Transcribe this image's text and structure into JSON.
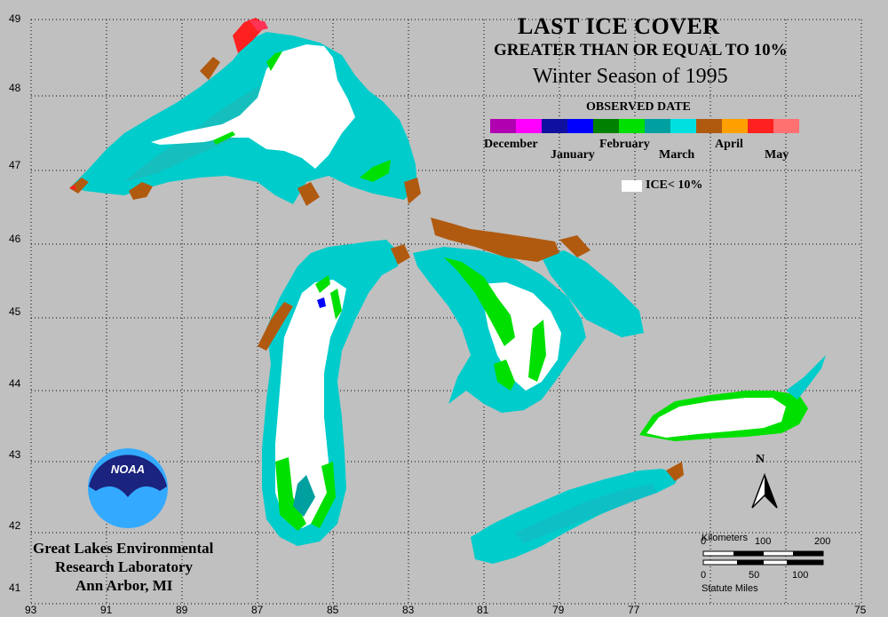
{
  "map": {
    "title": "LAST ICE COVER",
    "subtitle": "GREATER THAN OR EQUAL TO 10%",
    "season": "Winter Season of 1995",
    "legend_heading": "OBSERVED DATE",
    "legend_months": [
      "December",
      "January",
      "February",
      "March",
      "April",
      "May"
    ],
    "legend_colors": [
      "#b000b0",
      "#ff00ff",
      "#1010a0",
      "#0000ff",
      "#008000",
      "#00e000",
      "#00a0a0",
      "#00e0e0",
      "#b05a10",
      "#ffa000",
      "#ff2020",
      "#ff7070"
    ],
    "ice_lt_label": "ICE< 10%",
    "lat_labels": [
      "49",
      "48",
      "47",
      "46",
      "45",
      "44",
      "43",
      "42",
      "41"
    ],
    "lon_labels": [
      "93",
      "91",
      "89",
      "87",
      "85",
      "83",
      "81",
      "79",
      "77",
      "75"
    ],
    "org_lines": [
      "Great Lakes Environmental",
      "Research Laboratory",
      "Ann Arbor, MI"
    ],
    "noaa_text": "NOAA",
    "north_label": "N",
    "scale": {
      "km_label": "Kilometers",
      "km_ticks": [
        "0",
        "100",
        "200"
      ],
      "mi_ticks": [
        "0",
        "50",
        "100"
      ],
      "mi_label": "Statute Miles"
    }
  }
}
